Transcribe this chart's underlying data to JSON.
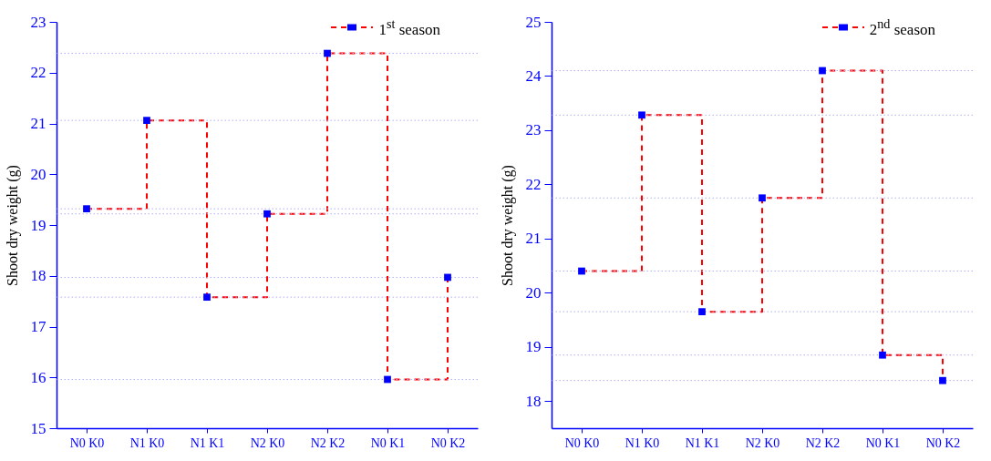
{
  "chart_data": [
    {
      "type": "step",
      "ylabel": "Shoot dry weight (g)",
      "categories": [
        "N0 K0",
        "N1 K0",
        "N1 K1",
        "N2 K0",
        "N2 K2",
        "N0 K1",
        "N0 K2"
      ],
      "series": [
        {
          "name": "1$^{st}$ season",
          "color": "#ff0000",
          "values": [
            19.32,
            21.06,
            17.58,
            19.22,
            22.38,
            15.96,
            17.97
          ]
        }
      ],
      "ylim": [
        15,
        23
      ],
      "yticks": [
        15,
        16,
        17,
        18,
        19,
        20,
        21,
        22,
        23
      ],
      "grid": false,
      "legend": "top right",
      "marker": "square",
      "line_style": "dashed",
      "ref_lines": [
        {
          "axis": "y",
          "value": 19.32,
          "color": "#b0b0f0",
          "line_style": "dotted"
        },
        {
          "axis": "y",
          "value": 21.06,
          "color": "#b0b0f0",
          "line_style": "dotted"
        },
        {
          "axis": "y",
          "value": 17.58,
          "color": "#b0b0f0",
          "line_style": "dotted"
        },
        {
          "axis": "y",
          "value": 19.22,
          "color": "#b0b0f0",
          "line_style": "dotted"
        },
        {
          "axis": "y",
          "value": 22.38,
          "color": "#b0b0f0",
          "line_style": "dotted"
        },
        {
          "axis": "y",
          "value": 15.96,
          "color": "#b0b0f0",
          "line_style": "dotted"
        },
        {
          "axis": "y",
          "value": 17.97,
          "color": "#b0b0f0",
          "line_style": "dotted"
        }
      ]
    },
    {
      "type": "step",
      "ylabel": "Shoot dry weight (g)",
      "categories": [
        "N0 K0",
        "N1 K0",
        "N1 K1",
        "N2 K0",
        "N2 K2",
        "N0 K1",
        "N0 K2"
      ],
      "series": [
        {
          "name": "2$^{nd}$ season",
          "color": "#ff0000",
          "values": [
            20.4,
            23.28,
            19.65,
            21.75,
            24.1,
            18.85,
            18.38
          ]
        }
      ],
      "ylim": [
        17.5,
        25
      ],
      "yticks": [
        18,
        19,
        20,
        21,
        22,
        23,
        24,
        25
      ],
      "grid": false,
      "legend": "top right",
      "marker": "square",
      "line_style": "dashed",
      "ref_lines": [
        {
          "axis": "y",
          "value": 20.4,
          "color": "#b0b0f0",
          "line_style": "dotted"
        },
        {
          "axis": "y",
          "value": 23.28,
          "color": "#b0b0f0",
          "line_style": "dotted"
        },
        {
          "axis": "y",
          "value": 19.65,
          "color": "#b0b0f0",
          "line_style": "dotted"
        },
        {
          "axis": "y",
          "value": 21.75,
          "color": "#b0b0f0",
          "line_style": "dotted"
        },
        {
          "axis": "y",
          "value": 24.1,
          "color": "#b0b0f0",
          "line_style": "dotted"
        },
        {
          "axis": "y",
          "value": 18.85,
          "color": "#b0b0f0",
          "line_style": "dotted"
        },
        {
          "axis": "y",
          "value": 18.38,
          "color": "#b0b0f0",
          "line_style": "dotted"
        }
      ]
    }
  ]
}
